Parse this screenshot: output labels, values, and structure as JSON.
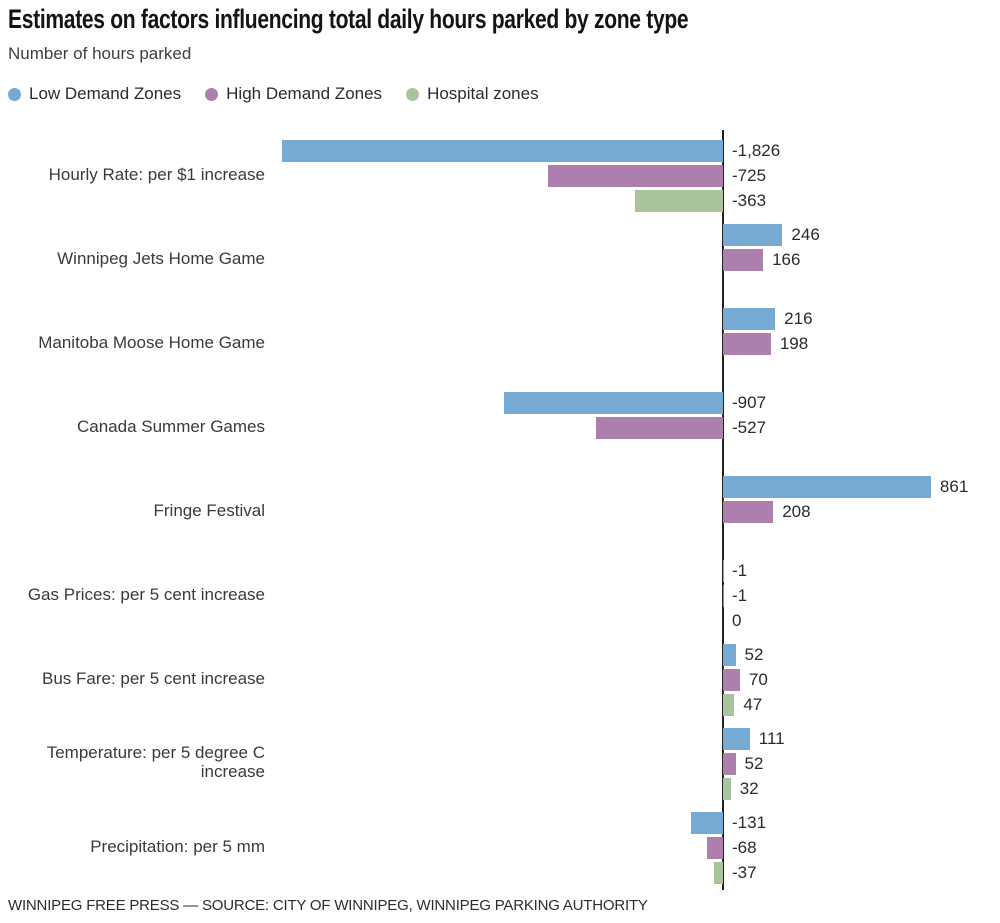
{
  "header": {
    "title": "Estimates on factors influencing total daily hours parked by zone type",
    "subtitle": "Number of hours parked"
  },
  "legend": [
    {
      "name": "Low Demand Zones",
      "color": "#76aad3"
    },
    {
      "name": "High Demand Zones",
      "color": "#ad7fac"
    },
    {
      "name": "Hospital zones",
      "color": "#a7c49c"
    }
  ],
  "footer": {
    "source_line": "WINNIPEG FREE PRESS — SOURCE: CITY OF WINNIPEG, WINNIPEG PARKING AUTHORITY"
  },
  "chart_data": {
    "type": "bar",
    "orientation": "horizontal",
    "title": "Estimates on factors influencing total daily hours parked by zone type",
    "ylabel": "Number of hours parked",
    "value_range": [
      -1826,
      861
    ],
    "zero_baseline": true,
    "grid": false,
    "legend_position": "top",
    "series_names": [
      "Low Demand Zones",
      "High Demand Zones",
      "Hospital zones"
    ],
    "categories": [
      {
        "label_lines": [
          "Hourly Rate: per $1 increase"
        ],
        "bars": [
          {
            "series": "Low Demand Zones",
            "value": -1826,
            "label": "-1,826"
          },
          {
            "series": "High Demand Zones",
            "value": -725,
            "label": "-725"
          },
          {
            "series": "Hospital zones",
            "value": -363,
            "label": "-363"
          }
        ]
      },
      {
        "label_lines": [
          "Winnipeg Jets Home Game"
        ],
        "bars": [
          {
            "series": "Low Demand Zones",
            "value": 246,
            "label": "246"
          },
          {
            "series": "High Demand Zones",
            "value": 166,
            "label": "166"
          }
        ]
      },
      {
        "label_lines": [
          "Manitoba Moose Home Game"
        ],
        "bars": [
          {
            "series": "Low Demand Zones",
            "value": 216,
            "label": "216"
          },
          {
            "series": "High Demand Zones",
            "value": 198,
            "label": "198"
          }
        ]
      },
      {
        "label_lines": [
          "Canada Summer Games"
        ],
        "bars": [
          {
            "series": "Low Demand Zones",
            "value": -907,
            "label": "-907"
          },
          {
            "series": "High Demand Zones",
            "value": -527,
            "label": "-527"
          }
        ]
      },
      {
        "label_lines": [
          "Fringe Festival"
        ],
        "bars": [
          {
            "series": "Low Demand Zones",
            "value": 861,
            "label": "861"
          },
          {
            "series": "High Demand Zones",
            "value": 208,
            "label": "208"
          }
        ]
      },
      {
        "label_lines": [
          "Gas Prices: per 5 cent increase"
        ],
        "bars": [
          {
            "series": "Low Demand Zones",
            "value": -1,
            "label": "-1"
          },
          {
            "series": "High Demand Zones",
            "value": -1,
            "label": "-1"
          },
          {
            "series": "Hospital zones",
            "value": 0,
            "label": "0"
          }
        ]
      },
      {
        "label_lines": [
          "Bus Fare: per 5 cent increase"
        ],
        "bars": [
          {
            "series": "Low Demand Zones",
            "value": 52,
            "label": "52"
          },
          {
            "series": "High Demand Zones",
            "value": 70,
            "label": "70"
          },
          {
            "series": "Hospital zones",
            "value": 47,
            "label": "47"
          }
        ]
      },
      {
        "label_lines": [
          "Temperature: per 5 degree C",
          "increase"
        ],
        "bars": [
          {
            "series": "Low Demand Zones",
            "value": 111,
            "label": "111"
          },
          {
            "series": "High Demand Zones",
            "value": 52,
            "label": "52"
          },
          {
            "series": "Hospital zones",
            "value": 32,
            "label": "32"
          }
        ]
      },
      {
        "label_lines": [
          "Precipitation: per 5 mm"
        ],
        "bars": [
          {
            "series": "Low Demand Zones",
            "value": -131,
            "label": "-131"
          },
          {
            "series": "High Demand Zones",
            "value": -68,
            "label": "-68"
          },
          {
            "series": "Hospital zones",
            "value": -37,
            "label": "-37"
          }
        ]
      }
    ]
  }
}
